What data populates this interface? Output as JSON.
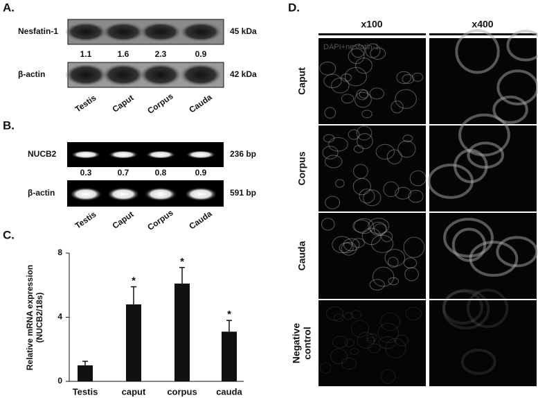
{
  "panel_a": {
    "label": "A.",
    "rows": [
      "Nesfatin-1",
      "β-actin"
    ],
    "sizes": [
      "45 kDa",
      "42 kDa"
    ],
    "ratios": [
      1.1,
      1.6,
      2.3,
      0.9
    ],
    "lanes": [
      "Testis",
      "Caput",
      "Corpus",
      "Cauda"
    ]
  },
  "panel_b": {
    "label": "B.",
    "rows": [
      "NUCB2",
      "β-actin"
    ],
    "sizes": [
      "236 bp",
      "591 bp"
    ],
    "ratios": [
      0.3,
      0.7,
      0.8,
      0.9
    ],
    "lanes": [
      "Testis",
      "Caput",
      "Corpus",
      "Cauda"
    ]
  },
  "chart_data": {
    "type": "bar",
    "panel_label": "C.",
    "y_label": [
      "Relative mRNA expression",
      "(NUCB2/18s)"
    ],
    "categories": [
      "Testis",
      "caput",
      "corpus",
      "cauda"
    ],
    "values": [
      1.0,
      4.8,
      6.1,
      3.1
    ],
    "errors": [
      0.25,
      1.1,
      1.0,
      0.7
    ],
    "significance": [
      null,
      "*",
      "*",
      "*"
    ],
    "color": "#111111",
    "ylim": [
      0,
      8
    ],
    "yticks": [
      0,
      4,
      8
    ]
  },
  "panel_d": {
    "label": "D.",
    "columns": [
      "x100",
      "x400"
    ],
    "rows": [
      [
        "Caput"
      ],
      [
        "Corpus"
      ],
      [
        "Cauda"
      ],
      [
        "Negative",
        "control"
      ]
    ],
    "overlay": "DAPI+nesfatin-1"
  }
}
